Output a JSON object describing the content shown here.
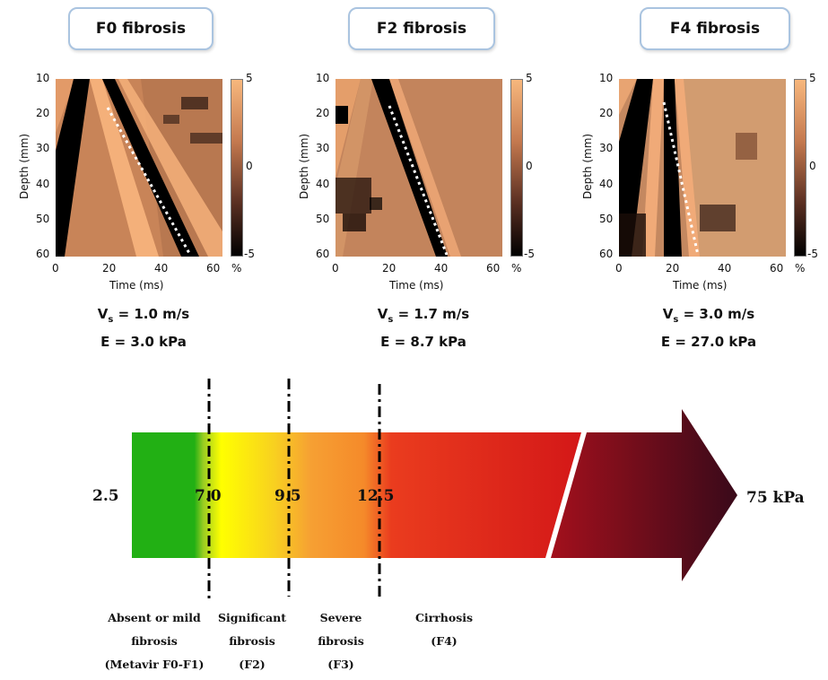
{
  "panels": [
    {
      "title": "F0 fibrosis",
      "vs_label": "V",
      "vs_sub": "s",
      "vs_value": " = 1.0 m/s",
      "e_line": "E = 3.0 kPa"
    },
    {
      "title": "F2 fibrosis",
      "vs_label": "V",
      "vs_sub": "s",
      "vs_value": " = 1.7 m/s",
      "e_line": "E = 8.7 kPa"
    },
    {
      "title": "F4 fibrosis",
      "vs_label": "V",
      "vs_sub": "s",
      "vs_value": " = 3.0 m/s",
      "e_line": "E = 27.0 kPa"
    }
  ],
  "axes": {
    "ylabel": "Depth (mm)",
    "xlabel": "Time (ms)",
    "yticks": [
      "10",
      "20",
      "30",
      "40",
      "50",
      "60"
    ],
    "xticks": [
      "0",
      "20",
      "40",
      "60"
    ],
    "colorbar_ticks": [
      "5",
      "0",
      "-5"
    ],
    "colorbar_unit": "%"
  },
  "scale": {
    "thresholds": [
      "2.5",
      "7.0",
      "9.5",
      "12.5"
    ],
    "end_label": "75 kPa",
    "colors": {
      "green": "#22b014",
      "yellow": "#ffff00",
      "orange": "#f7922e",
      "red": "#e41e1e",
      "dark": "#3a0a1a"
    },
    "stages": [
      {
        "line1": "Absent or mild",
        "line2": "fibrosis",
        "line3": "(Metavir F0-F1)"
      },
      {
        "line1": "Significant",
        "line2": "fibrosis",
        "line3": "(F2)"
      },
      {
        "line1": "Severe",
        "line2": "fibrosis",
        "line3": "(F3)"
      },
      {
        "line1": "Cirrhosis",
        "line2": "(F4)",
        "line3": ""
      }
    ]
  }
}
